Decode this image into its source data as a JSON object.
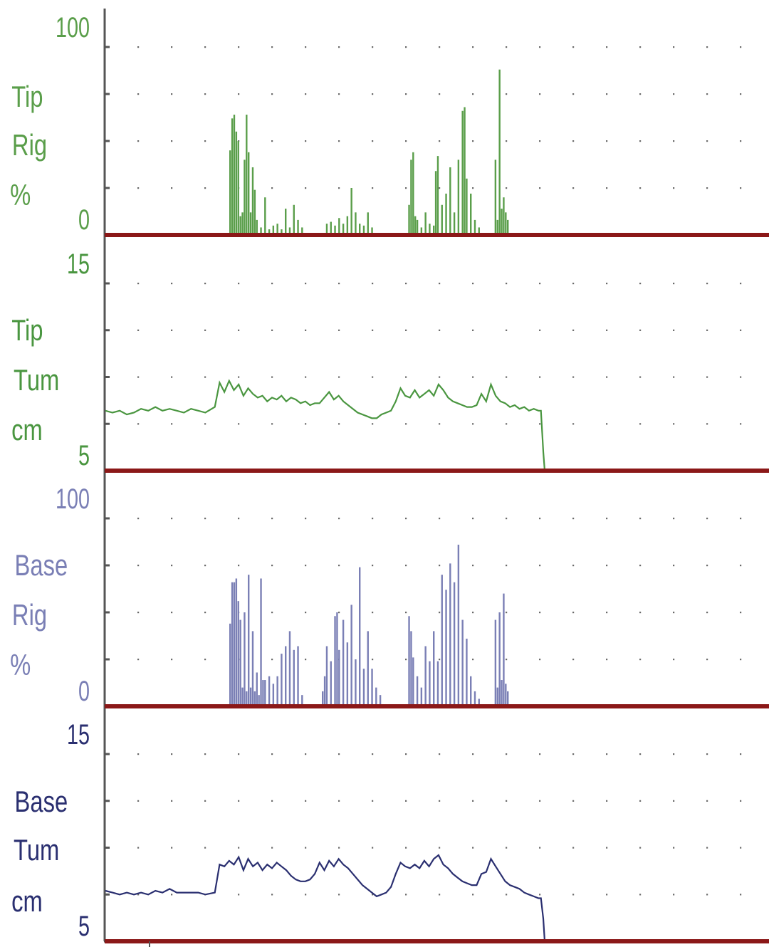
{
  "chart_data": [
    {
      "type": "bar",
      "label_lines": [
        "Tip",
        "Rig",
        "%"
      ],
      "color": "#5a9e4a",
      "ylim": [
        0,
        100
      ],
      "tick_labels": {
        "top": "100",
        "bottom": "0"
      },
      "x_range": [
        0,
        100
      ],
      "samples": [
        [
          32.5,
          45
        ],
        [
          33,
          62
        ],
        [
          33.5,
          64
        ],
        [
          34,
          55
        ],
        [
          34.5,
          50
        ],
        [
          35,
          10
        ],
        [
          35.5,
          12
        ],
        [
          36,
          40
        ],
        [
          36.5,
          64
        ],
        [
          37,
          44
        ],
        [
          37.5,
          12
        ],
        [
          38,
          36
        ],
        [
          38.5,
          24
        ],
        [
          39,
          8
        ],
        [
          40,
          4
        ],
        [
          41,
          20
        ],
        [
          42,
          3
        ],
        [
          43,
          5
        ],
        [
          44,
          6
        ],
        [
          45,
          3
        ],
        [
          46,
          14
        ],
        [
          47,
          4
        ],
        [
          48,
          16
        ],
        [
          49,
          8
        ],
        [
          50,
          4
        ],
        [
          56,
          6
        ],
        [
          57,
          7
        ],
        [
          58,
          5
        ],
        [
          59,
          9
        ],
        [
          60,
          6
        ],
        [
          61,
          10
        ],
        [
          62,
          25
        ],
        [
          63,
          12
        ],
        [
          64,
          6
        ],
        [
          65,
          5
        ],
        [
          66,
          12
        ],
        [
          67,
          4
        ],
        [
          76,
          16
        ],
        [
          76.5,
          40
        ],
        [
          77,
          44
        ],
        [
          77.5,
          10
        ],
        [
          78,
          8
        ],
        [
          79,
          4
        ],
        [
          80,
          12
        ],
        [
          81,
          6
        ],
        [
          82,
          5
        ],
        [
          82.5,
          34
        ],
        [
          83,
          42
        ],
        [
          84,
          16
        ],
        [
          85,
          22
        ],
        [
          86,
          36
        ],
        [
          87,
          12
        ],
        [
          88,
          40
        ],
        [
          89,
          66
        ],
        [
          89.5,
          68
        ],
        [
          90,
          30
        ],
        [
          91,
          22
        ],
        [
          92,
          8
        ],
        [
          93,
          4
        ],
        [
          97,
          40
        ],
        [
          97.5,
          8
        ],
        [
          98,
          88
        ],
        [
          98.5,
          14
        ],
        [
          99,
          20
        ],
        [
          99.5,
          12
        ],
        [
          100,
          8
        ]
      ]
    },
    {
      "type": "line",
      "label_lines": [
        "Tip",
        "Tum",
        "cm"
      ],
      "color": "#4a9640",
      "ylim": [
        5,
        15
      ],
      "tick_labels": {
        "top": "15",
        "bottom": "5"
      },
      "x_range": [
        0,
        100
      ],
      "samples": [
        [
          0,
          8.2
        ],
        [
          1.5,
          8.1
        ],
        [
          3,
          8.2
        ],
        [
          4.5,
          8.0
        ],
        [
          6,
          8.1
        ],
        [
          7.5,
          8.3
        ],
        [
          9,
          8.2
        ],
        [
          10.5,
          8.4
        ],
        [
          12,
          8.2
        ],
        [
          13.5,
          8.3
        ],
        [
          15,
          8.2
        ],
        [
          16.5,
          8.1
        ],
        [
          18,
          8.3
        ],
        [
          19.5,
          8.2
        ],
        [
          21,
          8.1
        ],
        [
          23,
          8.4
        ],
        [
          24,
          9.7
        ],
        [
          25,
          9.2
        ],
        [
          26,
          9.8
        ],
        [
          27,
          9.3
        ],
        [
          28,
          9.6
        ],
        [
          29,
          9.0
        ],
        [
          30,
          9.4
        ],
        [
          31,
          9.1
        ],
        [
          32,
          8.9
        ],
        [
          33,
          9.0
        ],
        [
          34,
          8.7
        ],
        [
          35,
          8.9
        ],
        [
          36,
          8.8
        ],
        [
          37,
          9.0
        ],
        [
          38,
          8.7
        ],
        [
          39,
          8.9
        ],
        [
          40,
          8.8
        ],
        [
          41,
          8.6
        ],
        [
          42,
          8.7
        ],
        [
          43,
          8.5
        ],
        [
          44,
          8.6
        ],
        [
          45,
          8.6
        ],
        [
          46,
          8.9
        ],
        [
          47,
          9.2
        ],
        [
          48,
          8.8
        ],
        [
          49,
          9.0
        ],
        [
          50,
          8.7
        ],
        [
          51,
          8.5
        ],
        [
          52,
          8.3
        ],
        [
          53,
          8.1
        ],
        [
          54,
          8.0
        ],
        [
          55,
          7.9
        ],
        [
          56,
          7.8
        ],
        [
          57,
          7.8
        ],
        [
          58,
          8.0
        ],
        [
          59,
          8.1
        ],
        [
          60,
          8.2
        ],
        [
          61,
          8.7
        ],
        [
          62,
          9.4
        ],
        [
          63,
          9.0
        ],
        [
          64,
          8.9
        ],
        [
          65,
          9.3
        ],
        [
          66,
          8.9
        ],
        [
          67,
          9.1
        ],
        [
          68,
          9.3
        ],
        [
          69,
          9.0
        ],
        [
          70,
          9.6
        ],
        [
          71,
          9.3
        ],
        [
          72,
          8.9
        ],
        [
          73,
          8.7
        ],
        [
          74,
          8.6
        ],
        [
          75,
          8.5
        ],
        [
          76,
          8.4
        ],
        [
          77,
          8.4
        ],
        [
          78,
          8.5
        ],
        [
          79,
          9.1
        ],
        [
          80,
          8.7
        ],
        [
          81,
          9.6
        ],
        [
          82,
          9.0
        ],
        [
          83,
          8.7
        ],
        [
          84,
          8.6
        ],
        [
          85,
          8.4
        ],
        [
          86,
          8.5
        ],
        [
          87,
          8.3
        ],
        [
          88,
          8.4
        ],
        [
          89,
          8.2
        ],
        [
          90,
          8.3
        ],
        [
          91,
          8.2
        ],
        [
          91.5,
          8.2
        ],
        [
          92,
          6.0
        ],
        [
          92.3,
          5.0
        ]
      ]
    },
    {
      "type": "bar",
      "label_lines": [
        "Base",
        "Rig",
        "%"
      ],
      "color": "#7a7fb5",
      "ylim": [
        0,
        100
      ],
      "tick_labels": {
        "top": "100",
        "bottom": "0"
      },
      "x_range": [
        0,
        100
      ],
      "samples": [
        [
          32.5,
          44
        ],
        [
          33,
          66
        ],
        [
          33.5,
          66
        ],
        [
          34,
          68
        ],
        [
          34.5,
          56
        ],
        [
          35,
          46
        ],
        [
          35.5,
          10
        ],
        [
          36,
          50
        ],
        [
          36.5,
          8
        ],
        [
          37,
          70
        ],
        [
          37.5,
          10
        ],
        [
          38,
          40
        ],
        [
          38.5,
          8
        ],
        [
          39,
          18
        ],
        [
          39.5,
          6
        ],
        [
          40,
          68
        ],
        [
          40.5,
          14
        ],
        [
          41,
          14
        ],
        [
          42,
          16
        ],
        [
          43,
          12
        ],
        [
          44,
          16
        ],
        [
          45,
          28
        ],
        [
          46,
          32
        ],
        [
          47,
          40
        ],
        [
          48,
          30
        ],
        [
          49,
          32
        ],
        [
          50,
          6
        ],
        [
          55,
          8
        ],
        [
          55.5,
          16
        ],
        [
          56,
          32
        ],
        [
          57,
          24
        ],
        [
          58,
          48
        ],
        [
          58.5,
          50
        ],
        [
          59,
          30
        ],
        [
          60,
          46
        ],
        [
          61,
          34
        ],
        [
          62,
          54
        ],
        [
          63,
          25
        ],
        [
          64,
          74
        ],
        [
          65,
          20
        ],
        [
          66,
          40
        ],
        [
          67,
          20
        ],
        [
          68,
          10
        ],
        [
          69,
          6
        ],
        [
          76,
          48
        ],
        [
          76.5,
          40
        ],
        [
          77,
          26
        ],
        [
          78,
          16
        ],
        [
          79,
          10
        ],
        [
          80,
          32
        ],
        [
          81,
          24
        ],
        [
          82,
          40
        ],
        [
          83,
          24
        ],
        [
          84,
          70
        ],
        [
          85,
          62
        ],
        [
          86,
          76
        ],
        [
          87,
          66
        ],
        [
          88,
          86
        ],
        [
          89,
          46
        ],
        [
          90,
          36
        ],
        [
          91,
          16
        ],
        [
          92,
          8
        ],
        [
          93,
          4
        ],
        [
          97,
          46
        ],
        [
          97.5,
          10
        ],
        [
          98,
          50
        ],
        [
          98.5,
          14
        ],
        [
          99,
          60
        ],
        [
          99.5,
          12
        ],
        [
          100,
          8
        ]
      ]
    },
    {
      "type": "line",
      "label_lines": [
        "Base",
        "Tum",
        "cm"
      ],
      "color": "#2a2f70",
      "ylim": [
        5,
        15
      ],
      "tick_labels": {
        "top": "15",
        "bottom": "5"
      },
      "x_range": [
        0,
        100
      ],
      "samples": [
        [
          0,
          7.7
        ],
        [
          1.5,
          7.6
        ],
        [
          3,
          7.5
        ],
        [
          4.5,
          7.6
        ],
        [
          6,
          7.5
        ],
        [
          7.5,
          7.6
        ],
        [
          9,
          7.5
        ],
        [
          10.5,
          7.7
        ],
        [
          12,
          7.6
        ],
        [
          13.5,
          7.8
        ],
        [
          15,
          7.6
        ],
        [
          16.5,
          7.6
        ],
        [
          18,
          7.6
        ],
        [
          19.5,
          7.6
        ],
        [
          21,
          7.5
        ],
        [
          23,
          7.6
        ],
        [
          24,
          9.1
        ],
        [
          25,
          9.0
        ],
        [
          26,
          9.3
        ],
        [
          27,
          9.1
        ],
        [
          28,
          9.5
        ],
        [
          29,
          8.8
        ],
        [
          30,
          9.4
        ],
        [
          31,
          9.0
        ],
        [
          32,
          9.2
        ],
        [
          33,
          8.8
        ],
        [
          34,
          9.1
        ],
        [
          35,
          8.9
        ],
        [
          36,
          9.2
        ],
        [
          37,
          9.0
        ],
        [
          38,
          8.8
        ],
        [
          39,
          8.5
        ],
        [
          40,
          8.3
        ],
        [
          41,
          8.2
        ],
        [
          42,
          8.2
        ],
        [
          43,
          8.3
        ],
        [
          44,
          8.6
        ],
        [
          45,
          9.2
        ],
        [
          46,
          8.8
        ],
        [
          47,
          9.3
        ],
        [
          48,
          9.0
        ],
        [
          49,
          9.4
        ],
        [
          50,
          9.1
        ],
        [
          51,
          8.9
        ],
        [
          52,
          8.6
        ],
        [
          53,
          8.3
        ],
        [
          54,
          8.0
        ],
        [
          55,
          7.8
        ],
        [
          56,
          7.6
        ],
        [
          57,
          7.4
        ],
        [
          58,
          7.5
        ],
        [
          59,
          7.6
        ],
        [
          60,
          7.9
        ],
        [
          61,
          8.6
        ],
        [
          62,
          9.2
        ],
        [
          63,
          9.0
        ],
        [
          64,
          8.9
        ],
        [
          65,
          9.1
        ],
        [
          66,
          8.9
        ],
        [
          67,
          9.3
        ],
        [
          68,
          9.0
        ],
        [
          69,
          9.4
        ],
        [
          70,
          9.6
        ],
        [
          71,
          9.1
        ],
        [
          72,
          8.9
        ],
        [
          73,
          8.6
        ],
        [
          74,
          8.4
        ],
        [
          75,
          8.2
        ],
        [
          76,
          8.1
        ],
        [
          77,
          8.0
        ],
        [
          78,
          8.0
        ],
        [
          79,
          8.6
        ],
        [
          80,
          8.7
        ],
        [
          81,
          9.4
        ],
        [
          82,
          9.0
        ],
        [
          83,
          8.6
        ],
        [
          84,
          8.2
        ],
        [
          85,
          8.0
        ],
        [
          86,
          7.9
        ],
        [
          87,
          7.8
        ],
        [
          88,
          7.6
        ],
        [
          89,
          7.5
        ],
        [
          90,
          7.4
        ],
        [
          91,
          7.3
        ],
        [
          91.5,
          7.3
        ],
        [
          92,
          6.2
        ],
        [
          92.3,
          5.0
        ]
      ]
    }
  ],
  "style": {
    "baseline_color": "#8b1818",
    "axis_color": "#555555",
    "grid_dot_color": "#6a6a6a",
    "grid": true
  }
}
